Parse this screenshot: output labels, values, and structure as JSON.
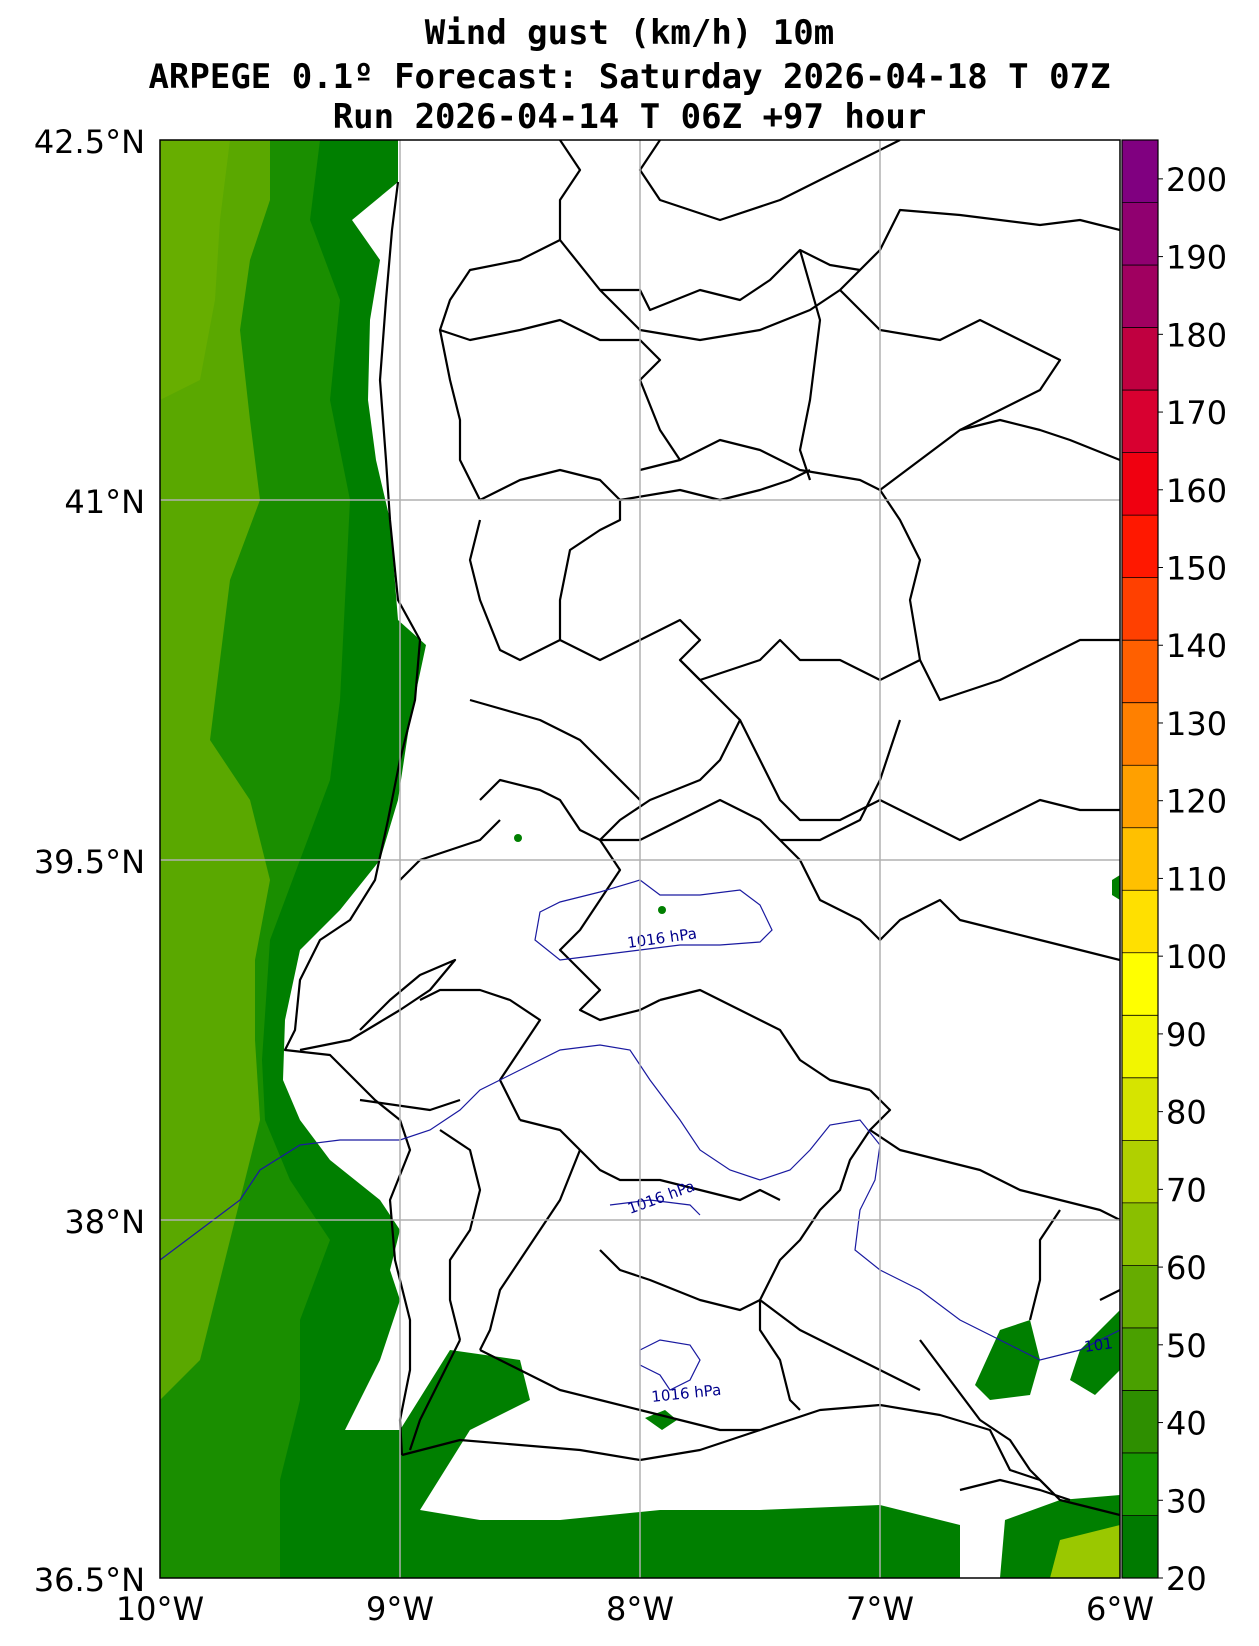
{
  "title": {
    "line1": "Wind gust (km/h) 10m",
    "line2": "ARPEGE 0.1º Forecast: Saturday 2026-04-18 T 07Z",
    "line3": "Run 2026-04-14 T 06Z +97 hour"
  },
  "axes": {
    "lat_labels": [
      "42.5°N",
      "41°N",
      "39.5°N",
      "38°N",
      "36.5°N"
    ],
    "lon_labels": [
      "10°W",
      "9°W",
      "8°W",
      "7°W",
      "6°W"
    ]
  },
  "colorbar": {
    "labels": [
      "20",
      "30",
      "40",
      "50",
      "60",
      "70",
      "80",
      "90",
      "100",
      "110",
      "120",
      "130",
      "140",
      "150",
      "160",
      "170",
      "180",
      "190",
      "200"
    ],
    "colors": [
      "#007a00",
      "#169600",
      "#2e8f00",
      "#4aa000",
      "#66ac00",
      "#8abf00",
      "#b0d000",
      "#d6e400",
      "#f2f600",
      "#ffff00",
      "#ffe000",
      "#ffc000",
      "#ffa000",
      "#ff8000",
      "#ff6000",
      "#ff4000",
      "#ff1800",
      "#f00010",
      "#d80030",
      "#c00040",
      "#a00060",
      "#900070",
      "#800080"
    ]
  },
  "contours": {
    "labels": [
      "1016 hPa",
      "1016 hPa",
      "1016 hPa",
      "101"
    ]
  },
  "colors": {
    "land": "#ffffff",
    "sea_dark": "#007f00",
    "sea_mid": "#1a8e00",
    "sea_light": "#5aa800",
    "border": "#000000",
    "isobar": "#1a1aa0",
    "grid": "#b0b0b0"
  }
}
